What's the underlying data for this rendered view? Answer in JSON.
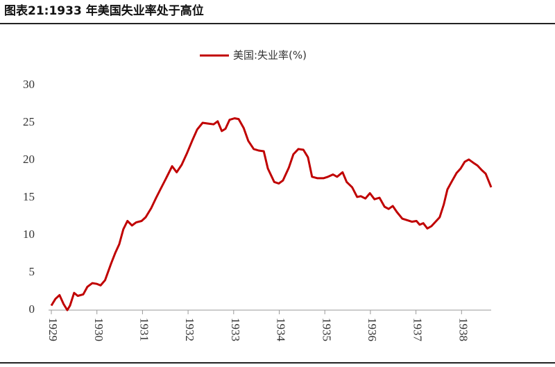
{
  "chart_data": {
    "type": "line",
    "title": "图表21:1933 年美国失业率处于高位",
    "x": [
      1929.0,
      1929.09,
      1929.18,
      1929.27,
      1929.35,
      1929.41,
      1929.5,
      1929.58,
      1929.7,
      1929.79,
      1929.9,
      1930.0,
      1930.08,
      1930.18,
      1930.31,
      1930.4,
      1930.49,
      1930.58,
      1930.67,
      1930.77,
      1930.86,
      1930.98,
      1931.07,
      1931.19,
      1931.3,
      1931.4,
      1931.51,
      1931.65,
      1931.75,
      1931.86,
      1931.98,
      1932.09,
      1932.2,
      1932.32,
      1932.44,
      1932.56,
      1932.65,
      1932.74,
      1932.82,
      1932.91,
      1933.02,
      1933.11,
      1933.22,
      1933.32,
      1933.44,
      1933.55,
      1933.66,
      1933.75,
      1933.89,
      1933.99,
      1934.08,
      1934.21,
      1934.31,
      1934.42,
      1934.53,
      1934.63,
      1934.72,
      1934.84,
      1934.97,
      1935.07,
      1935.18,
      1935.27,
      1935.39,
      1935.48,
      1935.6,
      1935.71,
      1935.79,
      1935.89,
      1935.99,
      1936.09,
      1936.2,
      1936.31,
      1936.4,
      1936.49,
      1936.58,
      1936.7,
      1936.81,
      1936.91,
      1937.01,
      1937.08,
      1937.16,
      1937.25,
      1937.34,
      1937.43,
      1937.52,
      1937.61,
      1937.69,
      1937.78,
      1937.89,
      1937.98,
      1938.07,
      1938.16,
      1938.25,
      1938.35,
      1938.44,
      1938.53,
      1938.65
    ],
    "series": [
      {
        "name": "美国:失业率(%)",
        "color": "#c00000",
        "values": [
          0.6,
          1.5,
          2.0,
          0.8,
          0,
          0.6,
          2.3,
          1.9,
          2.1,
          3.1,
          3.6,
          3.5,
          3.3,
          4.0,
          6.2,
          7.6,
          8.8,
          10.8,
          11.9,
          11.3,
          11.7,
          11.9,
          12.4,
          13.6,
          15.0,
          16.2,
          17.5,
          19.2,
          18.4,
          19.4,
          21.0,
          22.6,
          24.1,
          25.0,
          24.9,
          24.8,
          25.2,
          23.9,
          24.2,
          25.4,
          25.6,
          25.5,
          24.3,
          22.6,
          21.5,
          21.3,
          21.2,
          18.9,
          17.1,
          16.9,
          17.3,
          19.0,
          20.8,
          21.5,
          21.4,
          20.4,
          17.8,
          17.6,
          17.6,
          17.8,
          18.1,
          17.8,
          18.4,
          17.1,
          16.4,
          15.1,
          15.2,
          14.9,
          15.6,
          14.8,
          15.0,
          13.8,
          13.5,
          13.9,
          13.1,
          12.2,
          12.0,
          11.8,
          11.9,
          11.4,
          11.6,
          10.9,
          11.2,
          11.8,
          12.4,
          14.1,
          16.1,
          17.1,
          18.3,
          18.9,
          19.8,
          20.1,
          19.7,
          19.3,
          18.7,
          18.2,
          16.4
        ]
      }
    ],
    "xlim": [
      1929,
      1938.65
    ],
    "xticks": [
      1929,
      1930,
      1931,
      1932,
      1933,
      1934,
      1935,
      1936,
      1937,
      1938
    ],
    "ylim": [
      0,
      30
    ],
    "yticks": [
      0,
      5,
      10,
      15,
      20,
      25,
      30
    ],
    "legend": "top"
  }
}
